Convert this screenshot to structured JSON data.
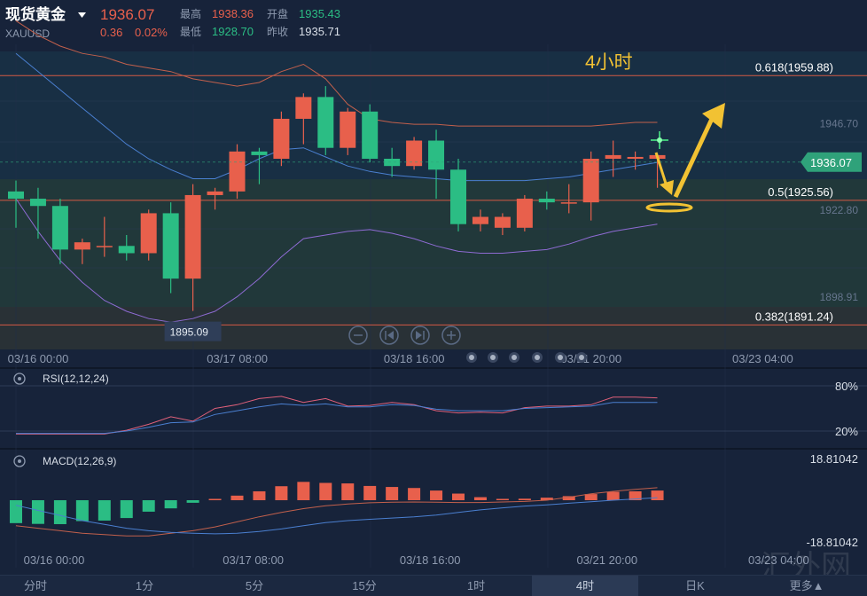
{
  "header": {
    "symbol_name": "现货黄金",
    "symbol_code": "XAUUSD",
    "last_price": "1936.07",
    "change": "0.36",
    "change_pct": "0.02%",
    "high_label": "最高",
    "high_value": "1938.36",
    "open_label": "开盘",
    "open_value": "1935.43",
    "low_label": "最低",
    "low_value": "1928.70",
    "prev_close_label": "昨收",
    "prev_close_value": "1935.71"
  },
  "annotation": {
    "timeframe_text": "4小时"
  },
  "colors": {
    "up": "#e8604c",
    "down": "#2bbd84",
    "bg": "#17233a",
    "fib_line": "#d45a45",
    "boll_upper": "#c2604c",
    "boll_mid": "#4a7fd0",
    "boll_lower": "#8e6bd3",
    "arrow": "#f2c233",
    "rsi_fast": "#e0607a",
    "rsi_slow": "#4a7fd0"
  },
  "chart_data": [
    {
      "type": "candlestick",
      "title": "",
      "y_range": [
        1884.5,
        1968.5
      ],
      "price_ticks": [
        "1946.70",
        "1922.80",
        "1898.91"
      ],
      "price_tick_values": [
        1946.7,
        1922.8,
        1898.91
      ],
      "current_price_label": "1936.07",
      "current_price": 1936.07,
      "low_marker_label": "1895.09",
      "low_marker_value": 1895.09,
      "x_labels": [
        "03/16 00:00",
        "03/17 08:00",
        "03/18 16:00",
        "03/21 20:00",
        "03/23 04:00"
      ],
      "fibonacci": [
        {
          "label": "0.618(1959.88)",
          "value": 1959.88
        },
        {
          "label": "0.5(1925.56)",
          "value": 1925.56
        },
        {
          "label": "0.382(1891.24)",
          "value": 1891.24
        }
      ],
      "candles": [
        {
          "o": 1928,
          "h": 1931,
          "l": 1918,
          "c": 1926
        },
        {
          "o": 1926,
          "h": 1929,
          "l": 1915,
          "c": 1924
        },
        {
          "o": 1924,
          "h": 1926,
          "l": 1908,
          "c": 1912
        },
        {
          "o": 1912,
          "h": 1915,
          "l": 1908,
          "c": 1914
        },
        {
          "o": 1913,
          "h": 1921,
          "l": 1910,
          "c": 1913
        },
        {
          "o": 1913,
          "h": 1916,
          "l": 1909,
          "c": 1911
        },
        {
          "o": 1911,
          "h": 1923,
          "l": 1909,
          "c": 1922
        },
        {
          "o": 1922,
          "h": 1925,
          "l": 1900,
          "c": 1904
        },
        {
          "o": 1904,
          "h": 1930,
          "l": 1895.09,
          "c": 1927
        },
        {
          "o": 1927,
          "h": 1929,
          "l": 1923,
          "c": 1928
        },
        {
          "o": 1928,
          "h": 1941,
          "l": 1926,
          "c": 1939
        },
        {
          "o": 1939,
          "h": 1940,
          "l": 1930,
          "c": 1938
        },
        {
          "o": 1937,
          "h": 1950,
          "l": 1935,
          "c": 1948
        },
        {
          "o": 1948,
          "h": 1955,
          "l": 1941,
          "c": 1954
        },
        {
          "o": 1954,
          "h": 1957,
          "l": 1938,
          "c": 1940
        },
        {
          "o": 1940,
          "h": 1951,
          "l": 1938,
          "c": 1950
        },
        {
          "o": 1950,
          "h": 1952,
          "l": 1936,
          "c": 1937
        },
        {
          "o": 1937,
          "h": 1940,
          "l": 1932,
          "c": 1935
        },
        {
          "o": 1935,
          "h": 1943,
          "l": 1934,
          "c": 1942
        },
        {
          "o": 1942,
          "h": 1945,
          "l": 1926,
          "c": 1934
        },
        {
          "o": 1934,
          "h": 1937,
          "l": 1917,
          "c": 1919
        },
        {
          "o": 1919,
          "h": 1923,
          "l": 1917,
          "c": 1921
        },
        {
          "o": 1918,
          "h": 1922,
          "l": 1916,
          "c": 1921
        },
        {
          "o": 1918,
          "h": 1927,
          "l": 1917,
          "c": 1926
        },
        {
          "o": 1926,
          "h": 1928,
          "l": 1923,
          "c": 1925
        },
        {
          "o": 1925,
          "h": 1930,
          "l": 1922,
          "c": 1925
        },
        {
          "o": 1925,
          "h": 1939,
          "l": 1920,
          "c": 1937
        },
        {
          "o": 1937,
          "h": 1942,
          "l": 1932,
          "c": 1938
        },
        {
          "o": 1937,
          "h": 1939,
          "l": 1934,
          "c": 1937.5
        },
        {
          "o": 1937,
          "h": 1938.5,
          "l": 1929,
          "c": 1938
        }
      ],
      "bollinger": {
        "upper": [
          1975,
          1971,
          1968,
          1966,
          1965,
          1963,
          1962,
          1961,
          1959,
          1958,
          1957,
          1958,
          1961,
          1963,
          1959,
          1952,
          1948,
          1947,
          1946.5,
          1946.5,
          1946,
          1946,
          1946,
          1946,
          1946,
          1946,
          1946,
          1946.5,
          1947,
          1947
        ],
        "middle": [
          1966,
          1961,
          1956,
          1951,
          1946,
          1941,
          1937,
          1934,
          1931.5,
          1931.5,
          1934,
          1937,
          1939.5,
          1940,
          1937.5,
          1935,
          1933.5,
          1932.5,
          1932,
          1931.5,
          1931,
          1931,
          1931,
          1931,
          1931.5,
          1932,
          1933,
          1934,
          1935,
          1936
        ],
        "lower": [
          1926,
          1917,
          1909,
          1903,
          1898,
          1895,
          1893,
          1892,
          1893,
          1895,
          1899,
          1904,
          1910,
          1915,
          1916,
          1917,
          1917.5,
          1916.5,
          1915,
          1913,
          1911.5,
          1911,
          1911,
          1911.5,
          1912,
          1913.5,
          1915.5,
          1917,
          1918,
          1919
        ]
      }
    },
    {
      "type": "line",
      "title": "RSI(12,12,24)",
      "ylim": [
        0,
        100
      ],
      "ticks": [
        "80%",
        "20%"
      ],
      "tick_values": [
        80,
        20
      ],
      "series": [
        {
          "values": [
            16,
            16,
            16,
            16,
            16,
            21,
            29,
            39,
            33,
            50,
            55,
            63,
            66,
            58,
            63,
            53,
            54,
            58,
            55,
            47,
            44,
            45,
            44,
            51,
            53,
            53,
            55,
            65,
            65,
            64
          ]
        },
        {
          "values": [
            17,
            17,
            17,
            17,
            17,
            20,
            25,
            31,
            32,
            42,
            47,
            52,
            56,
            54,
            56,
            52,
            52,
            55,
            54,
            49,
            47,
            47,
            47,
            50,
            51,
            52,
            53,
            58,
            58,
            58
          ]
        }
      ]
    },
    {
      "type": "bar",
      "title": "MACD(12,26,9)",
      "ylim": [
        -18.81042,
        18.81042
      ],
      "ticks": [
        "18.81042",
        "-18.81042"
      ],
      "tick_values": [
        18.81042,
        -18.81042
      ],
      "histogram": [
        -9,
        -9.3,
        -9.4,
        -8.2,
        -8,
        -7,
        -4.5,
        -3.2,
        -1,
        0.4,
        1.8,
        3.5,
        5.5,
        7.2,
        6.8,
        6.6,
        5.6,
        5.2,
        4.8,
        3.8,
        2.6,
        1.2,
        0.5,
        0.6,
        1,
        1.6,
        2.4,
        3.3,
        3.5,
        3.8
      ],
      "series": [
        {
          "values": [
            -10,
            -11,
            -12,
            -13,
            -13.5,
            -14,
            -14,
            -13,
            -12,
            -10.5,
            -8.5,
            -6.5,
            -4.8,
            -3.3,
            -2.2,
            -1.5,
            -1,
            -0.8,
            -0.7,
            -0.8,
            -0.9,
            -0.9,
            -0.7,
            -0.5,
            0,
            1.2,
            2.5,
            3.5,
            4.3,
            4.9
          ]
        },
        {
          "values": [
            -2,
            -4,
            -6,
            -8,
            -9.5,
            -11,
            -12,
            -12.6,
            -13,
            -13.2,
            -13,
            -12.3,
            -11.3,
            -10,
            -8.8,
            -8,
            -7.5,
            -7,
            -6.5,
            -5.8,
            -4.8,
            -3.8,
            -3,
            -2.3,
            -1.8,
            -1.2,
            -0.6,
            0,
            0.5,
            1
          ]
        }
      ]
    }
  ],
  "indicator_rows": {
    "rsi_title": "RSI(12,12,24)",
    "macd_title": "MACD(12,26,9)"
  },
  "tabs": [
    {
      "label": "分时"
    },
    {
      "label": "1分"
    },
    {
      "label": "5分"
    },
    {
      "label": "15分"
    },
    {
      "label": "1时"
    },
    {
      "label": "4时",
      "active": true
    },
    {
      "label": "日K"
    },
    {
      "label": "更多▲"
    }
  ],
  "icons": {
    "zoom_out": "minus-circle-icon",
    "step_back": "step-back-icon",
    "step_forward": "step-forward-icon",
    "zoom_in": "plus-circle-icon",
    "settings": "gear-icon"
  },
  "watermark": "汇外网"
}
